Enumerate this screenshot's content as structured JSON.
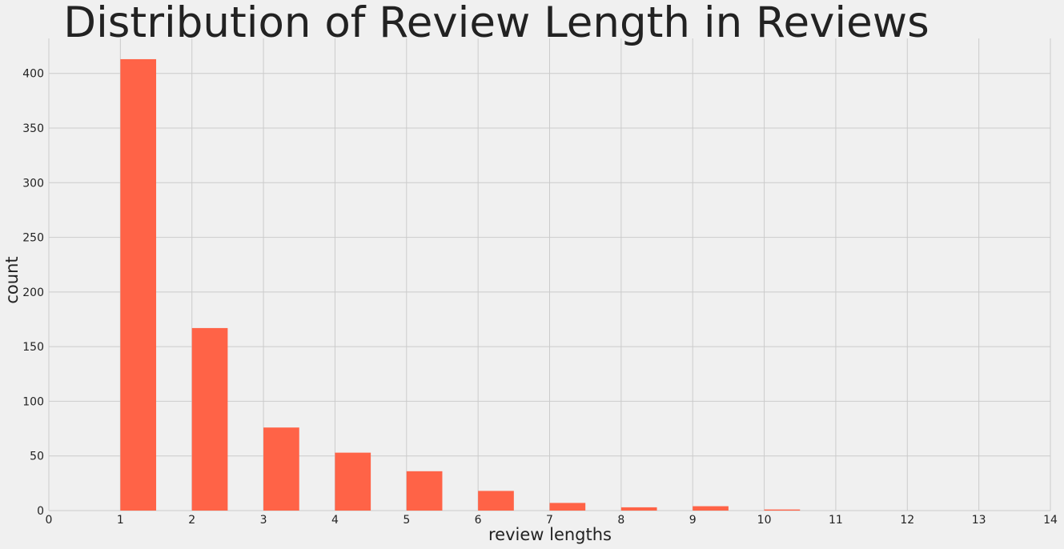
{
  "chart_data": {
    "type": "bar",
    "title": "Distribution of Review Length in Reviews",
    "xlabel": "review lengths",
    "ylabel": "count",
    "xlim": [
      0,
      14
    ],
    "ylim": [
      0,
      432
    ],
    "x_ticks": [
      "0",
      "1",
      "2",
      "3",
      "4",
      "5",
      "6",
      "7",
      "8",
      "9",
      "10",
      "11",
      "12",
      "13",
      "14"
    ],
    "y_ticks": [
      "0",
      "50",
      "100",
      "150",
      "200",
      "250",
      "300",
      "350",
      "400"
    ],
    "grid": true,
    "bar_color": "#ff6347",
    "bins": [
      {
        "start": 1,
        "end": 1.5,
        "value": 413
      },
      {
        "start": 2,
        "end": 2.5,
        "value": 167
      },
      {
        "start": 3,
        "end": 3.5,
        "value": 76
      },
      {
        "start": 4,
        "end": 4.5,
        "value": 53
      },
      {
        "start": 5,
        "end": 5.5,
        "value": 36
      },
      {
        "start": 6,
        "end": 6.5,
        "value": 18
      },
      {
        "start": 7,
        "end": 7.5,
        "value": 7
      },
      {
        "start": 8,
        "end": 8.5,
        "value": 3
      },
      {
        "start": 9,
        "end": 9.5,
        "value": 4
      },
      {
        "start": 10,
        "end": 10.5,
        "value": 1
      }
    ]
  }
}
